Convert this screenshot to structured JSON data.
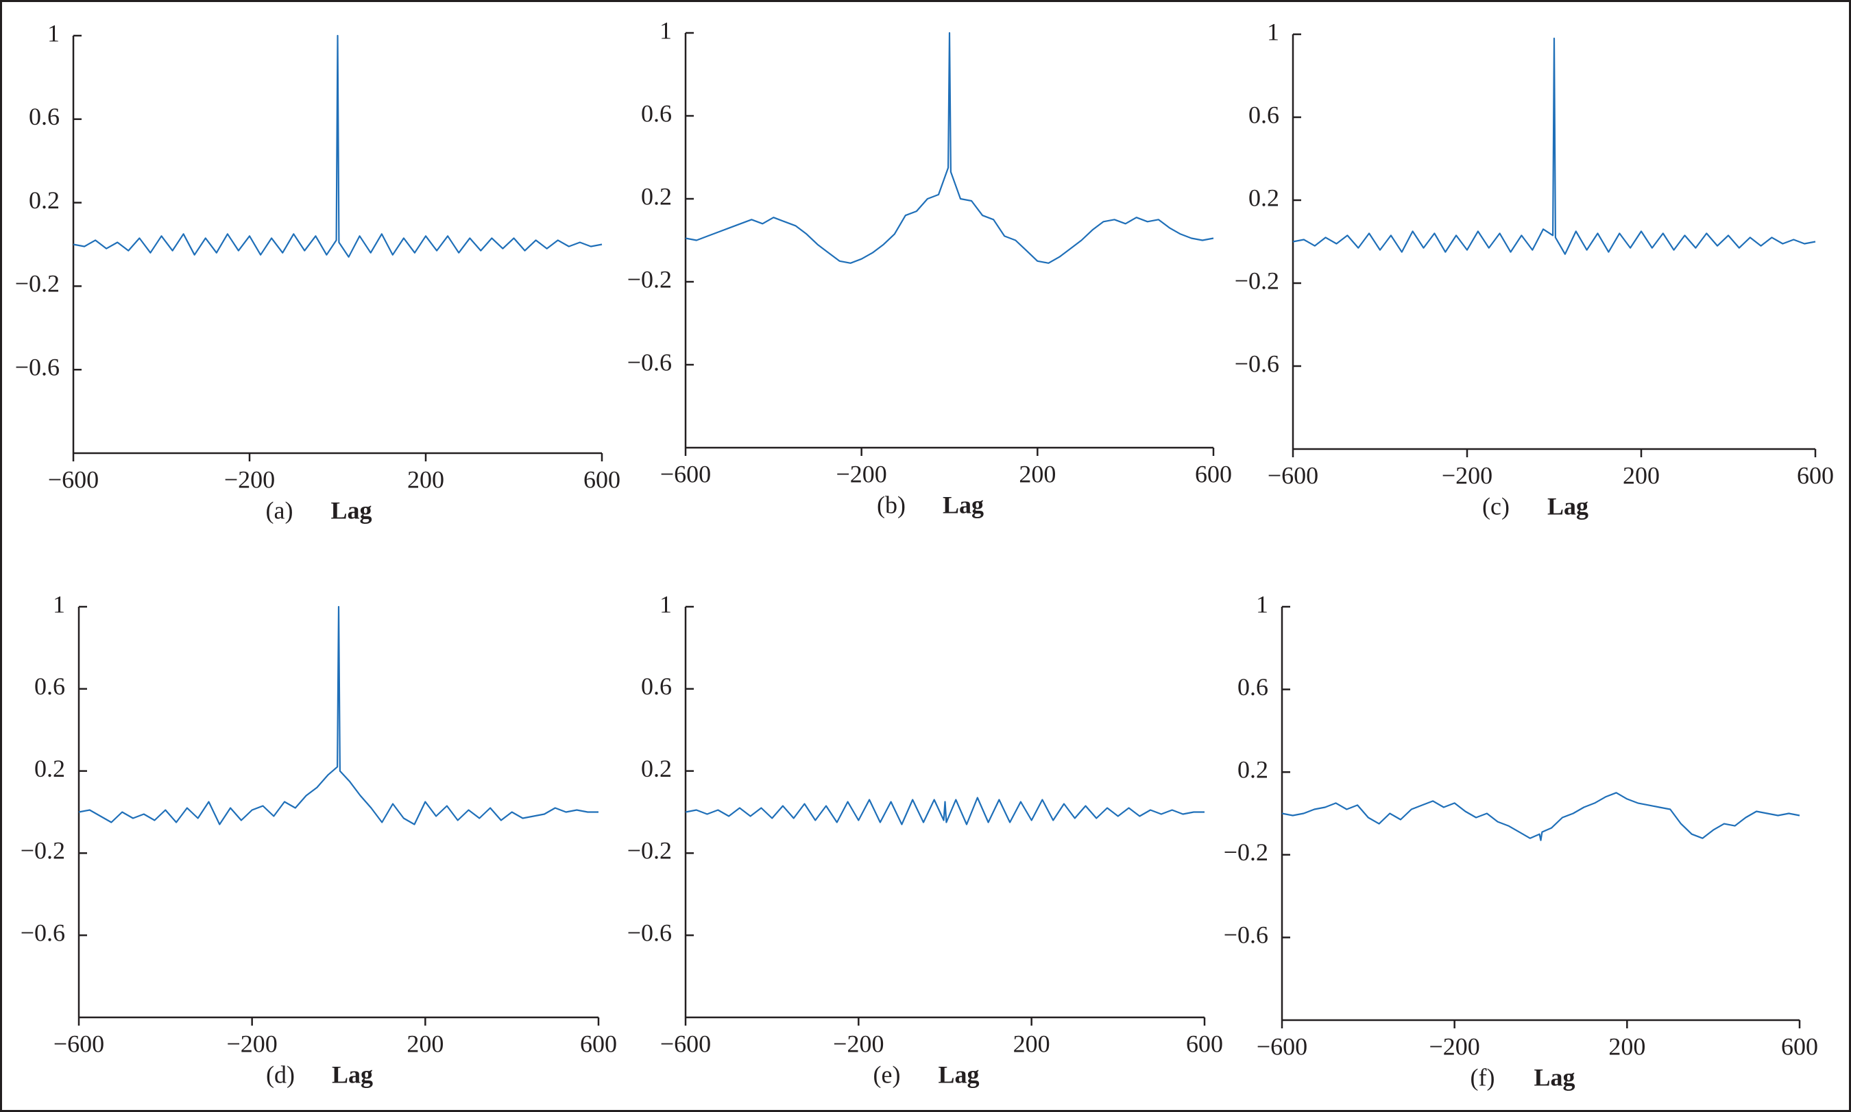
{
  "chart_data": [
    {
      "type": "line",
      "caption": "(a)",
      "xlabel": "Lag",
      "color": "#1f6fb8",
      "x": [
        -600,
        -575,
        -550,
        -525,
        -500,
        -475,
        -450,
        -425,
        -400,
        -375,
        -350,
        -325,
        -300,
        -275,
        -250,
        -225,
        -200,
        -175,
        -150,
        -125,
        -100,
        -75,
        -50,
        -25,
        -3,
        0,
        3,
        25,
        50,
        75,
        100,
        125,
        150,
        175,
        200,
        225,
        250,
        275,
        300,
        325,
        350,
        375,
        400,
        425,
        450,
        475,
        500,
        525,
        550,
        575,
        600
      ],
      "values": [
        0.0,
        -0.01,
        0.02,
        -0.02,
        0.01,
        -0.03,
        0.03,
        -0.04,
        0.04,
        -0.03,
        0.05,
        -0.05,
        0.03,
        -0.04,
        0.05,
        -0.03,
        0.04,
        -0.05,
        0.03,
        -0.04,
        0.05,
        -0.03,
        0.04,
        -0.05,
        0.02,
        1,
        0.01,
        -0.06,
        0.04,
        -0.04,
        0.05,
        -0.05,
        0.03,
        -0.04,
        0.04,
        -0.03,
        0.04,
        -0.04,
        0.03,
        -0.03,
        0.03,
        -0.02,
        0.03,
        -0.03,
        0.02,
        -0.02,
        0.02,
        -0.01,
        0.01,
        -0.01,
        0.0
      ],
      "xlim": [
        -600,
        600
      ],
      "ylim": [
        -1,
        1
      ],
      "xticks": [
        {
          "value": -600,
          "label": "−600"
        },
        {
          "value": -200,
          "label": "−200"
        },
        200,
        600
      ],
      "yticks": [
        1,
        0.6,
        0.2,
        {
          "value": -0.2,
          "label": "−0.2"
        },
        {
          "value": -0.6,
          "label": "−0.6"
        }
      ]
    },
    {
      "type": "line",
      "caption": "(b)",
      "xlabel": "Lag",
      "color": "#1f6fb8",
      "x": [
        -600,
        -575,
        -550,
        -525,
        -500,
        -475,
        -450,
        -425,
        -400,
        -375,
        -350,
        -325,
        -300,
        -275,
        -250,
        -225,
        -200,
        -175,
        -150,
        -125,
        -100,
        -75,
        -50,
        -25,
        -3,
        0,
        3,
        25,
        50,
        75,
        100,
        125,
        150,
        175,
        200,
        225,
        250,
        275,
        300,
        325,
        350,
        375,
        400,
        425,
        450,
        475,
        500,
        525,
        550,
        575,
        600
      ],
      "values": [
        0.01,
        0.0,
        0.02,
        0.04,
        0.06,
        0.08,
        0.1,
        0.08,
        0.11,
        0.09,
        0.07,
        0.03,
        -0.02,
        -0.06,
        -0.1,
        -0.11,
        -0.09,
        -0.06,
        -0.02,
        0.03,
        0.12,
        0.14,
        0.2,
        0.22,
        0.35,
        1,
        0.33,
        0.2,
        0.19,
        0.12,
        0.1,
        0.02,
        0.0,
        -0.05,
        -0.1,
        -0.11,
        -0.08,
        -0.04,
        0.0,
        0.05,
        0.09,
        0.1,
        0.08,
        0.11,
        0.09,
        0.1,
        0.06,
        0.03,
        0.01,
        0.0,
        0.01
      ],
      "xlim": [
        -600,
        600
      ],
      "ylim": [
        -1,
        1
      ],
      "xticks": [
        {
          "value": -600,
          "label": "−600"
        },
        {
          "value": -200,
          "label": "−200"
        },
        200,
        600
      ],
      "yticks": [
        1,
        0.6,
        0.2,
        {
          "value": -0.2,
          "label": "−0.2"
        },
        {
          "value": -0.6,
          "label": "−0.6"
        }
      ]
    },
    {
      "type": "line",
      "caption": "(c)",
      "xlabel": "Lag",
      "color": "#1f6fb8",
      "x": [
        -600,
        -575,
        -550,
        -525,
        -500,
        -475,
        -450,
        -425,
        -400,
        -375,
        -350,
        -325,
        -300,
        -275,
        -250,
        -225,
        -200,
        -175,
        -150,
        -125,
        -100,
        -75,
        -50,
        -25,
        -3,
        0,
        3,
        25,
        50,
        75,
        100,
        125,
        150,
        175,
        200,
        225,
        250,
        275,
        300,
        325,
        350,
        375,
        400,
        425,
        450,
        475,
        500,
        525,
        550,
        575,
        600
      ],
      "values": [
        0.0,
        0.01,
        -0.02,
        0.02,
        -0.01,
        0.03,
        -0.03,
        0.04,
        -0.04,
        0.03,
        -0.05,
        0.05,
        -0.03,
        0.04,
        -0.05,
        0.03,
        -0.04,
        0.05,
        -0.03,
        0.04,
        -0.05,
        0.03,
        -0.04,
        0.06,
        0.03,
        0.98,
        0.02,
        -0.06,
        0.05,
        -0.04,
        0.04,
        -0.05,
        0.04,
        -0.03,
        0.05,
        -0.03,
        0.04,
        -0.04,
        0.03,
        -0.03,
        0.04,
        -0.02,
        0.03,
        -0.03,
        0.02,
        -0.02,
        0.02,
        -0.01,
        0.01,
        -0.01,
        0.0
      ],
      "xlim": [
        -600,
        600
      ],
      "ylim": [
        -1,
        1
      ],
      "xticks": [
        {
          "value": -600,
          "label": "−600"
        },
        {
          "value": -200,
          "label": "−200"
        },
        200,
        600
      ],
      "yticks": [
        1,
        0.6,
        0.2,
        {
          "value": -0.2,
          "label": "−0.2"
        },
        {
          "value": -0.6,
          "label": "−0.6"
        }
      ]
    },
    {
      "type": "line",
      "caption": "(d)",
      "xlabel": "Lag",
      "color": "#1f6fb8",
      "x": [
        -600,
        -575,
        -550,
        -525,
        -500,
        -475,
        -450,
        -425,
        -400,
        -375,
        -350,
        -325,
        -300,
        -275,
        -250,
        -225,
        -200,
        -175,
        -150,
        -125,
        -100,
        -75,
        -50,
        -25,
        -3,
        0,
        3,
        25,
        50,
        75,
        100,
        125,
        150,
        175,
        200,
        225,
        250,
        275,
        300,
        325,
        350,
        375,
        400,
        425,
        450,
        475,
        500,
        525,
        550,
        575,
        600
      ],
      "values": [
        0.0,
        0.01,
        -0.02,
        -0.05,
        0.0,
        -0.03,
        -0.01,
        -0.04,
        0.01,
        -0.05,
        0.02,
        -0.03,
        0.05,
        -0.06,
        0.02,
        -0.04,
        0.01,
        0.03,
        -0.02,
        0.05,
        0.02,
        0.08,
        0.12,
        0.18,
        0.22,
        1,
        0.2,
        0.15,
        0.08,
        0.02,
        -0.05,
        0.04,
        -0.03,
        -0.06,
        0.05,
        -0.02,
        0.03,
        -0.04,
        0.01,
        -0.03,
        0.02,
        -0.04,
        0.0,
        -0.03,
        -0.02,
        -0.01,
        0.02,
        0.0,
        0.01,
        0.0,
        0.0
      ],
      "xlim": [
        -600,
        600
      ],
      "ylim": [
        -1,
        1
      ],
      "xticks": [
        {
          "value": -600,
          "label": "−600"
        },
        {
          "value": -200,
          "label": "−200"
        },
        200,
        600
      ],
      "yticks": [
        1,
        0.6,
        0.2,
        {
          "value": -0.2,
          "label": "−0.2"
        },
        {
          "value": -0.6,
          "label": "−0.6"
        }
      ]
    },
    {
      "type": "line",
      "caption": "(e)",
      "xlabel": "Lag",
      "color": "#1f6fb8",
      "x": [
        -600,
        -575,
        -550,
        -525,
        -500,
        -475,
        -450,
        -425,
        -400,
        -375,
        -350,
        -325,
        -300,
        -275,
        -250,
        -225,
        -200,
        -175,
        -150,
        -125,
        -100,
        -75,
        -50,
        -25,
        -3,
        0,
        3,
        25,
        50,
        75,
        100,
        125,
        150,
        175,
        200,
        225,
        250,
        275,
        300,
        325,
        350,
        375,
        400,
        425,
        450,
        475,
        500,
        525,
        550,
        575,
        600
      ],
      "values": [
        0.0,
        0.01,
        -0.01,
        0.01,
        -0.02,
        0.02,
        -0.02,
        0.02,
        -0.03,
        0.03,
        -0.03,
        0.04,
        -0.04,
        0.03,
        -0.05,
        0.05,
        -0.04,
        0.06,
        -0.05,
        0.05,
        -0.06,
        0.06,
        -0.05,
        0.06,
        -0.04,
        0.05,
        -0.05,
        0.06,
        -0.06,
        0.07,
        -0.05,
        0.06,
        -0.05,
        0.05,
        -0.04,
        0.06,
        -0.04,
        0.04,
        -0.03,
        0.03,
        -0.03,
        0.02,
        -0.02,
        0.02,
        -0.02,
        0.01,
        -0.01,
        0.01,
        -0.01,
        0.0,
        0.0
      ],
      "xlim": [
        -600,
        600
      ],
      "ylim": [
        -1,
        1
      ],
      "xticks": [
        {
          "value": -600,
          "label": "−600"
        },
        {
          "value": -200,
          "label": "−200"
        },
        200,
        600
      ],
      "yticks": [
        1,
        0.6,
        0.2,
        {
          "value": -0.2,
          "label": "−0.2"
        },
        {
          "value": -0.6,
          "label": "−0.6"
        }
      ]
    },
    {
      "type": "line",
      "caption": "(f)",
      "xlabel": "Lag",
      "color": "#1f6fb8",
      "x": [
        -600,
        -575,
        -550,
        -525,
        -500,
        -475,
        -450,
        -425,
        -400,
        -375,
        -350,
        -325,
        -300,
        -275,
        -250,
        -225,
        -200,
        -175,
        -150,
        -125,
        -100,
        -75,
        -50,
        -25,
        -3,
        0,
        3,
        25,
        50,
        75,
        100,
        125,
        150,
        175,
        200,
        225,
        250,
        275,
        300,
        325,
        350,
        375,
        400,
        425,
        450,
        475,
        500,
        525,
        550,
        575,
        600
      ],
      "values": [
        0.0,
        -0.01,
        0.0,
        0.02,
        0.03,
        0.05,
        0.02,
        0.04,
        -0.02,
        -0.05,
        0.0,
        -0.03,
        0.02,
        0.04,
        0.06,
        0.03,
        0.05,
        0.01,
        -0.02,
        0.0,
        -0.04,
        -0.06,
        -0.09,
        -0.12,
        -0.1,
        -0.13,
        -0.09,
        -0.07,
        -0.02,
        0.0,
        0.03,
        0.05,
        0.08,
        0.1,
        0.07,
        0.05,
        0.04,
        0.03,
        0.02,
        -0.05,
        -0.1,
        -0.12,
        -0.08,
        -0.05,
        -0.06,
        -0.02,
        0.01,
        0.0,
        -0.01,
        0.0,
        -0.01
      ],
      "xlim": [
        -600,
        600
      ],
      "ylim": [
        -1,
        1
      ],
      "xticks": [
        {
          "value": -600,
          "label": "−600"
        },
        {
          "value": -200,
          "label": "−200"
        },
        200,
        600
      ],
      "yticks": [
        1,
        0.6,
        0.2,
        {
          "value": -0.2,
          "label": "−0.2"
        },
        {
          "value": -0.6,
          "label": "−0.6"
        }
      ]
    }
  ]
}
